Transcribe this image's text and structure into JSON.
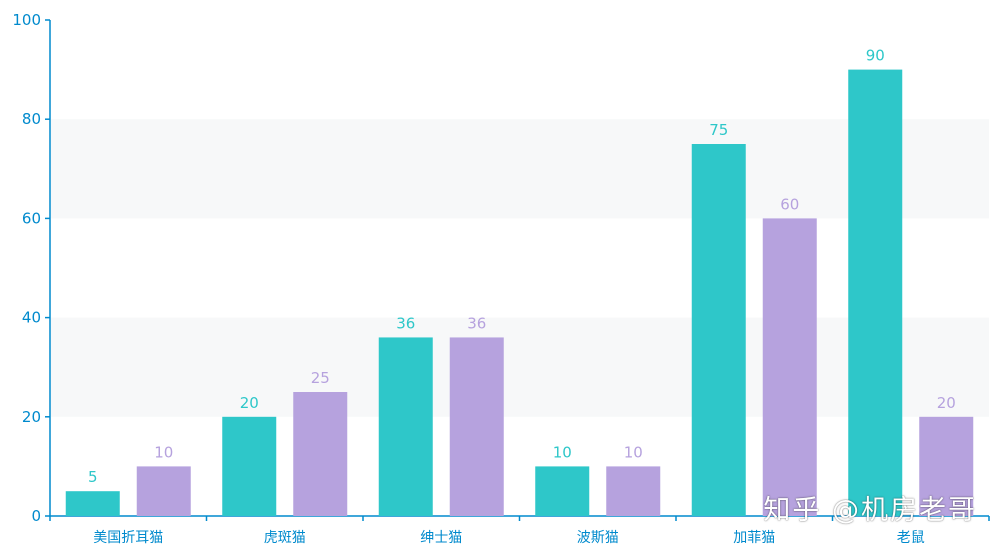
{
  "chart_data": {
    "type": "bar",
    "categories": [
      "美国折耳猫",
      "虎斑猫",
      "绅士猫",
      "波斯猫",
      "加菲猫",
      "老鼠"
    ],
    "series": [
      {
        "values": [
          5,
          20,
          36,
          10,
          75,
          90
        ],
        "color": "#2ec7c9"
      },
      {
        "values": [
          10,
          25,
          36,
          10,
          60,
          20
        ],
        "color": "#b6a2de"
      }
    ],
    "ylim": [
      0,
      100
    ],
    "yticks": [
      0,
      20,
      40,
      60,
      80,
      100
    ],
    "title": "",
    "xlabel": "",
    "ylabel": "",
    "grid": "alternating bands",
    "axis_color": "#008acd",
    "band_color": "#f7f8f9"
  },
  "watermark": "知乎 @机房老哥"
}
